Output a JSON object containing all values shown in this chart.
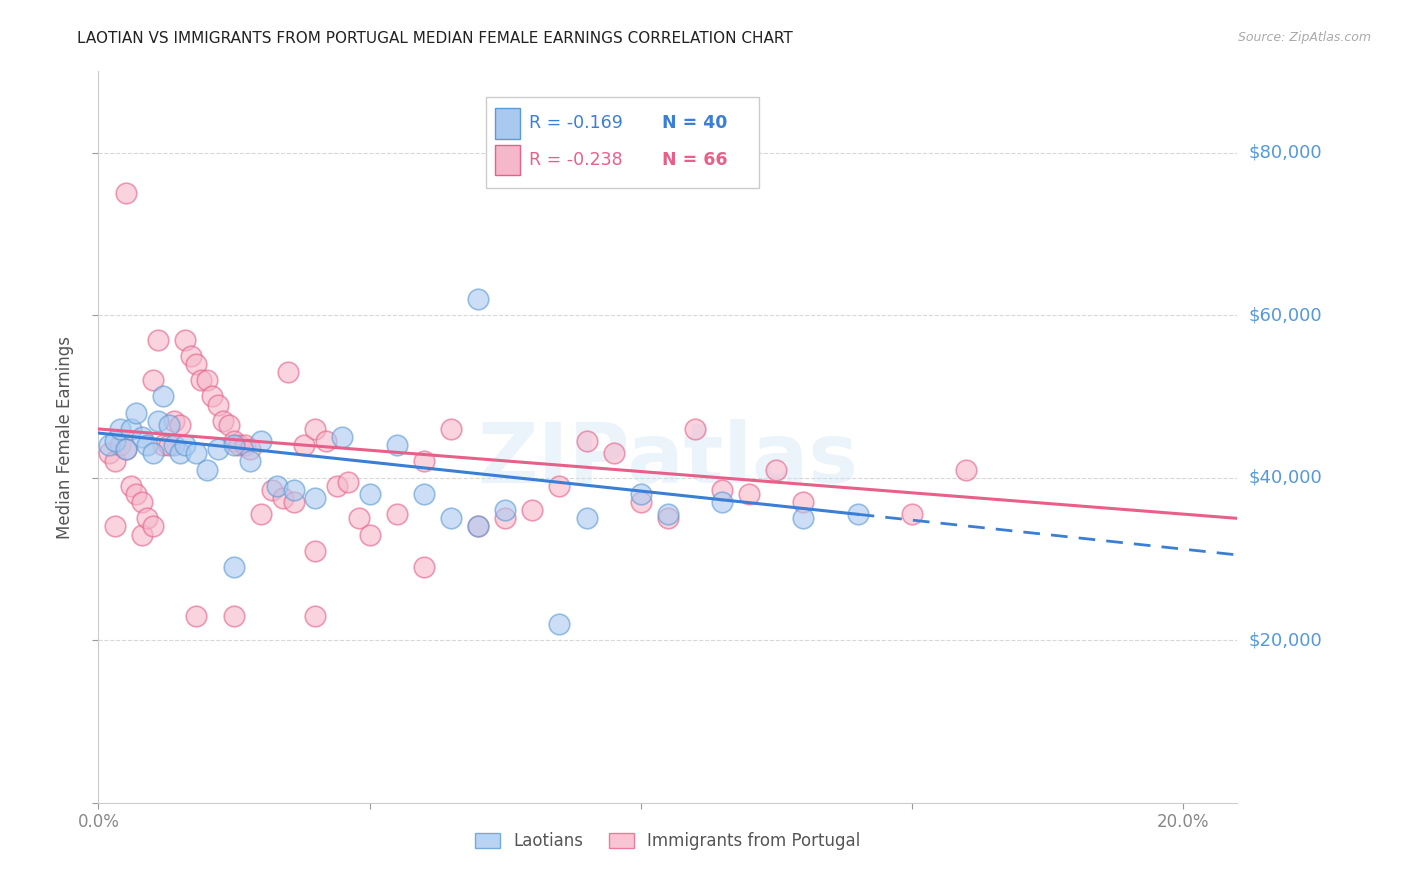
{
  "title": "LAOTIAN VS IMMIGRANTS FROM PORTUGAL MEDIAN FEMALE EARNINGS CORRELATION CHART",
  "source": "Source: ZipAtlas.com",
  "ylabel": "Median Female Earnings",
  "xlim": [
    0.0,
    0.21
  ],
  "ylim": [
    0,
    90000
  ],
  "yticks": [
    0,
    20000,
    40000,
    60000,
    80000
  ],
  "ytick_labels": [
    "",
    "$20,000",
    "$40,000",
    "$60,000",
    "$80,000"
  ],
  "xticks": [
    0.0,
    0.05,
    0.1,
    0.15,
    0.2
  ],
  "xtick_labels": [
    "0.0%",
    "",
    "",
    "",
    "20.0%"
  ],
  "background_color": "#ffffff",
  "grid_color": "#d8d8d8",
  "blue_fill": "#aac9f0",
  "pink_fill": "#f5b8cb",
  "blue_edge": "#5b9bd5",
  "pink_edge": "#e8608a",
  "trendline_blue": "#3a7fd5",
  "trendline_pink": "#e8608a",
  "axis_color": "#cccccc",
  "right_label_color": "#5599dd",
  "legend_r1": "-0.169",
  "legend_n1": "40",
  "legend_r2": "-0.238",
  "legend_n2": "66",
  "watermark": "ZIPatlas",
  "blue_scatter": [
    [
      0.002,
      44000
    ],
    [
      0.003,
      44500
    ],
    [
      0.004,
      46000
    ],
    [
      0.005,
      43500
    ],
    [
      0.006,
      46000
    ],
    [
      0.007,
      48000
    ],
    [
      0.008,
      45000
    ],
    [
      0.009,
      44000
    ],
    [
      0.01,
      43000
    ],
    [
      0.011,
      47000
    ],
    [
      0.012,
      50000
    ],
    [
      0.013,
      46500
    ],
    [
      0.014,
      44000
    ],
    [
      0.015,
      43000
    ],
    [
      0.016,
      44000
    ],
    [
      0.018,
      43000
    ],
    [
      0.02,
      41000
    ],
    [
      0.022,
      43500
    ],
    [
      0.025,
      44000
    ],
    [
      0.028,
      42000
    ],
    [
      0.03,
      44500
    ],
    [
      0.033,
      39000
    ],
    [
      0.036,
      38500
    ],
    [
      0.04,
      37500
    ],
    [
      0.045,
      45000
    ],
    [
      0.05,
      38000
    ],
    [
      0.055,
      44000
    ],
    [
      0.06,
      38000
    ],
    [
      0.065,
      35000
    ],
    [
      0.07,
      34000
    ],
    [
      0.075,
      36000
    ],
    [
      0.085,
      22000
    ],
    [
      0.09,
      35000
    ],
    [
      0.1,
      38000
    ],
    [
      0.07,
      62000
    ],
    [
      0.105,
      35500
    ],
    [
      0.115,
      37000
    ],
    [
      0.13,
      35000
    ],
    [
      0.025,
      29000
    ],
    [
      0.14,
      35500
    ]
  ],
  "pink_scatter": [
    [
      0.002,
      43000
    ],
    [
      0.003,
      42000
    ],
    [
      0.004,
      44000
    ],
    [
      0.005,
      75000
    ],
    [
      0.005,
      43500
    ],
    [
      0.006,
      39000
    ],
    [
      0.007,
      38000
    ],
    [
      0.008,
      37000
    ],
    [
      0.008,
      33000
    ],
    [
      0.009,
      35000
    ],
    [
      0.01,
      52000
    ],
    [
      0.011,
      57000
    ],
    [
      0.012,
      44000
    ],
    [
      0.013,
      44000
    ],
    [
      0.014,
      47000
    ],
    [
      0.015,
      46500
    ],
    [
      0.016,
      57000
    ],
    [
      0.017,
      55000
    ],
    [
      0.018,
      54000
    ],
    [
      0.019,
      52000
    ],
    [
      0.02,
      52000
    ],
    [
      0.021,
      50000
    ],
    [
      0.022,
      49000
    ],
    [
      0.023,
      47000
    ],
    [
      0.024,
      46500
    ],
    [
      0.025,
      44500
    ],
    [
      0.026,
      44000
    ],
    [
      0.027,
      44000
    ],
    [
      0.028,
      43500
    ],
    [
      0.03,
      35500
    ],
    [
      0.032,
      38500
    ],
    [
      0.034,
      37500
    ],
    [
      0.036,
      37000
    ],
    [
      0.038,
      44000
    ],
    [
      0.04,
      46000
    ],
    [
      0.042,
      44500
    ],
    [
      0.044,
      39000
    ],
    [
      0.046,
      39500
    ],
    [
      0.048,
      35000
    ],
    [
      0.05,
      33000
    ],
    [
      0.055,
      35500
    ],
    [
      0.06,
      42000
    ],
    [
      0.065,
      46000
    ],
    [
      0.07,
      34000
    ],
    [
      0.075,
      35000
    ],
    [
      0.08,
      36000
    ],
    [
      0.085,
      39000
    ],
    [
      0.09,
      44500
    ],
    [
      0.095,
      43000
    ],
    [
      0.1,
      37000
    ],
    [
      0.105,
      35000
    ],
    [
      0.11,
      46000
    ],
    [
      0.115,
      38500
    ],
    [
      0.12,
      38000
    ],
    [
      0.125,
      41000
    ],
    [
      0.13,
      37000
    ],
    [
      0.035,
      53000
    ],
    [
      0.15,
      35500
    ],
    [
      0.16,
      41000
    ],
    [
      0.018,
      23000
    ],
    [
      0.04,
      23000
    ],
    [
      0.06,
      29000
    ],
    [
      0.04,
      31000
    ],
    [
      0.003,
      34000
    ],
    [
      0.025,
      23000
    ],
    [
      0.01,
      34000
    ]
  ],
  "blue_trend_x": [
    0.0,
    0.14
  ],
  "blue_trend_y": [
    45500,
    35500
  ],
  "blue_dashed_trend_x": [
    0.14,
    0.21
  ],
  "blue_dashed_trend_y": [
    35500,
    30500
  ],
  "pink_trend_x": [
    0.0,
    0.21
  ],
  "pink_trend_y": [
    46000,
    35000
  ]
}
